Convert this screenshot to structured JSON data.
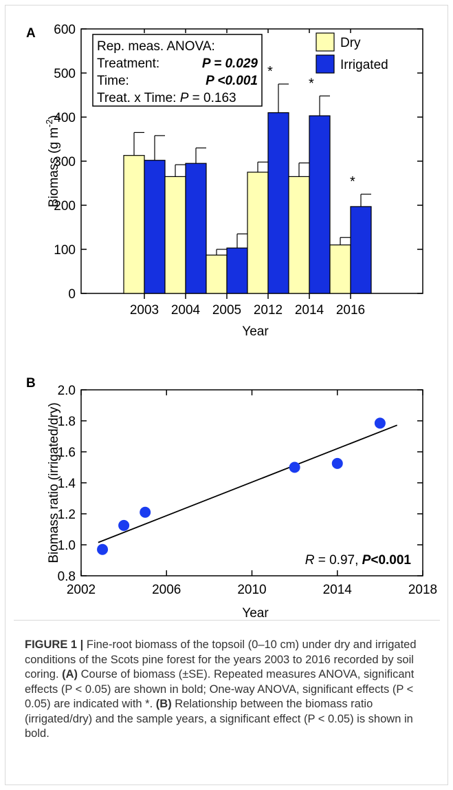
{
  "panels": {
    "a_label": "A",
    "b_label": "B"
  },
  "chart_data": [
    {
      "type": "bar",
      "categories": [
        "2003",
        "2004",
        "2005",
        "2012",
        "2014",
        "2016"
      ],
      "series": [
        {
          "name": "Dry",
          "color": "#ffffb3",
          "values": [
            313,
            265,
            87,
            275,
            265,
            110
          ],
          "errors": [
            52,
            27,
            13,
            23,
            31,
            17
          ]
        },
        {
          "name": "Irrigated",
          "color": "#1530e0",
          "values": [
            302,
            295,
            103,
            410,
            403,
            197
          ],
          "errors": [
            56,
            35,
            32,
            65,
            45,
            28
          ]
        }
      ],
      "significant": [
        "2012",
        "2014",
        "2016"
      ],
      "xlabel": "Year",
      "ylabel": "Biomass (g m",
      "ylabel_sup": "-2",
      "ylabel_end": ")",
      "ylim": [
        0,
        600
      ],
      "yticks": [
        0,
        100,
        200,
        300,
        400,
        500,
        600
      ],
      "legend_position": "top-right",
      "star": "*",
      "stats_box": {
        "line1": "Rep. meas. ANOVA:",
        "treat_label": "Treatment:",
        "treat_value": "P = 0.029",
        "time_label": "Time:",
        "time_value": "P <0.001",
        "inter_label": "Treat. x Time:",
        "inter_p": "P",
        "inter_value": " = 0.163"
      }
    },
    {
      "type": "scatter",
      "x": [
        2003,
        2004,
        2005,
        2012,
        2014,
        2016
      ],
      "y": [
        0.97,
        1.125,
        1.21,
        1.5,
        1.525,
        1.785
      ],
      "color": "#1a3cf0",
      "trendline": {
        "x": [
          2002.8,
          2016.8
        ],
        "y": [
          1.015,
          1.772
        ]
      },
      "xlabel": "Year",
      "ylabel": "Biomass ratio (irrigated/dry)",
      "xlim": [
        2002,
        2018
      ],
      "ylim": [
        0.8,
        2.0
      ],
      "xticks": [
        2002,
        2006,
        2010,
        2014,
        2018
      ],
      "yticks": [
        "0.8",
        "1.0",
        "1.2",
        "1.4",
        "1.6",
        "1.8",
        "2.0"
      ],
      "annotation_r": "R",
      "annotation_r_value": " = 0.97,  ",
      "annotation_p": "P",
      "annotation_p_value": "<0.001"
    }
  ],
  "caption": {
    "label": "FIGURE 1 |",
    "text1": " Fine-root biomass of the topsoil (0–10 cm) under dry and irrigated conditions of the Scots pine forest for the years 2003 to 2016 recorded by soil coring. ",
    "a": "(A)",
    "text2": " Course of biomass (±SE). Repeated measures ANOVA, significant effects (P < 0.05) are shown in bold; One-way ANOVA, significant effects (P < 0.05) are indicated with *. ",
    "b": "(B)",
    "text3": " Relationship between the biomass ratio (irrigated/dry) and the sample years, a significant effect (P < 0.05) is shown in bold."
  }
}
